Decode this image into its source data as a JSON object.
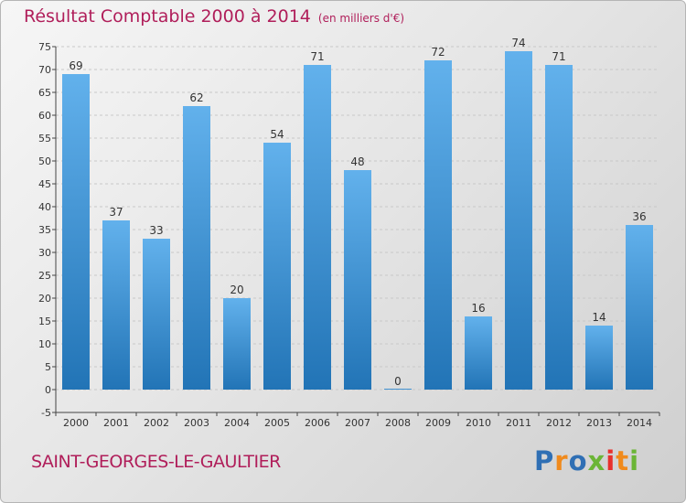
{
  "title": "Résultat Comptable 2000 à 2014",
  "subtitle": "(en milliers d'€)",
  "commune": "SAINT-GEORGES-LE-GAULTIER",
  "logo": {
    "text": "Proxiti",
    "letters": [
      {
        "ch": "P",
        "color": "#2f6fb4"
      },
      {
        "ch": "r",
        "color": "#f08a1c"
      },
      {
        "ch": "o",
        "color": "#2f6fb4"
      },
      {
        "ch": "x",
        "color": "#6bb536"
      },
      {
        "ch": "i",
        "color": "#e8302c"
      },
      {
        "ch": "t",
        "color": "#f08a1c"
      },
      {
        "ch": "i",
        "color": "#6bb536"
      }
    ]
  },
  "colors": {
    "title": "#b01e5a",
    "bar_light": "#62b1ec",
    "bar_dark": "#2274b6",
    "axis": "#444444",
    "grid": "#c8c8c8"
  },
  "chart_data": {
    "type": "bar",
    "title": "Résultat Comptable 2000 à 2014",
    "subtitle": "(en milliers d'€)",
    "xlabel": "",
    "ylabel": "",
    "categories": [
      "2000",
      "2001",
      "2002",
      "2003",
      "2004",
      "2005",
      "2006",
      "2007",
      "2008",
      "2009",
      "2010",
      "2011",
      "2012",
      "2013",
      "2014"
    ],
    "values": [
      69,
      37,
      33,
      62,
      20,
      54,
      71,
      48,
      0,
      72,
      16,
      74,
      71,
      14,
      36
    ],
    "ylim": [
      -5,
      75
    ],
    "yticks": [
      -5,
      0,
      5,
      10,
      15,
      20,
      25,
      30,
      35,
      40,
      45,
      50,
      55,
      60,
      65,
      70,
      75
    ],
    "grid": true,
    "legend": "none"
  }
}
